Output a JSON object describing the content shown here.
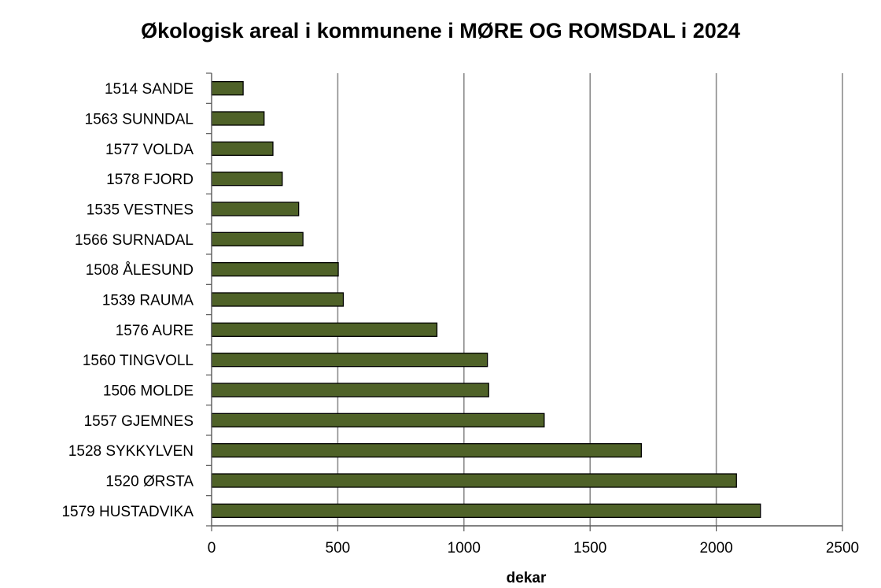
{
  "chart_data": {
    "type": "bar",
    "orientation": "horizontal",
    "title": "Økologisk areal i kommunene i MØRE OG ROMSDAL i 2024",
    "xlabel": "dekar",
    "ylabel": "",
    "xlim": [
      0,
      2500
    ],
    "xticks": [
      0,
      500,
      1000,
      1500,
      2000,
      2500
    ],
    "grid": "vertical",
    "legend": "none",
    "bar_color": "#4f6228",
    "bar_edge_color": "#000000",
    "categories": [
      "1514 SANDE",
      "1563 SUNNDAL",
      "1577 VOLDA",
      "1578 FJORD",
      "1535 VESTNES",
      "1566 SURNADAL",
      "1508 ÅLESUND",
      "1539 RAUMA",
      "1576 AURE",
      "1560 TINGVOLL",
      "1506 MOLDE",
      "1557 GJEMNES",
      "1528 SYKKYLVEN",
      "1520 ØRSTA",
      "1579 HUSTADVIKA"
    ],
    "values": [
      125,
      208,
      243,
      280,
      345,
      362,
      502,
      522,
      893,
      1093,
      1098,
      1318,
      1703,
      2080,
      2175
    ]
  }
}
